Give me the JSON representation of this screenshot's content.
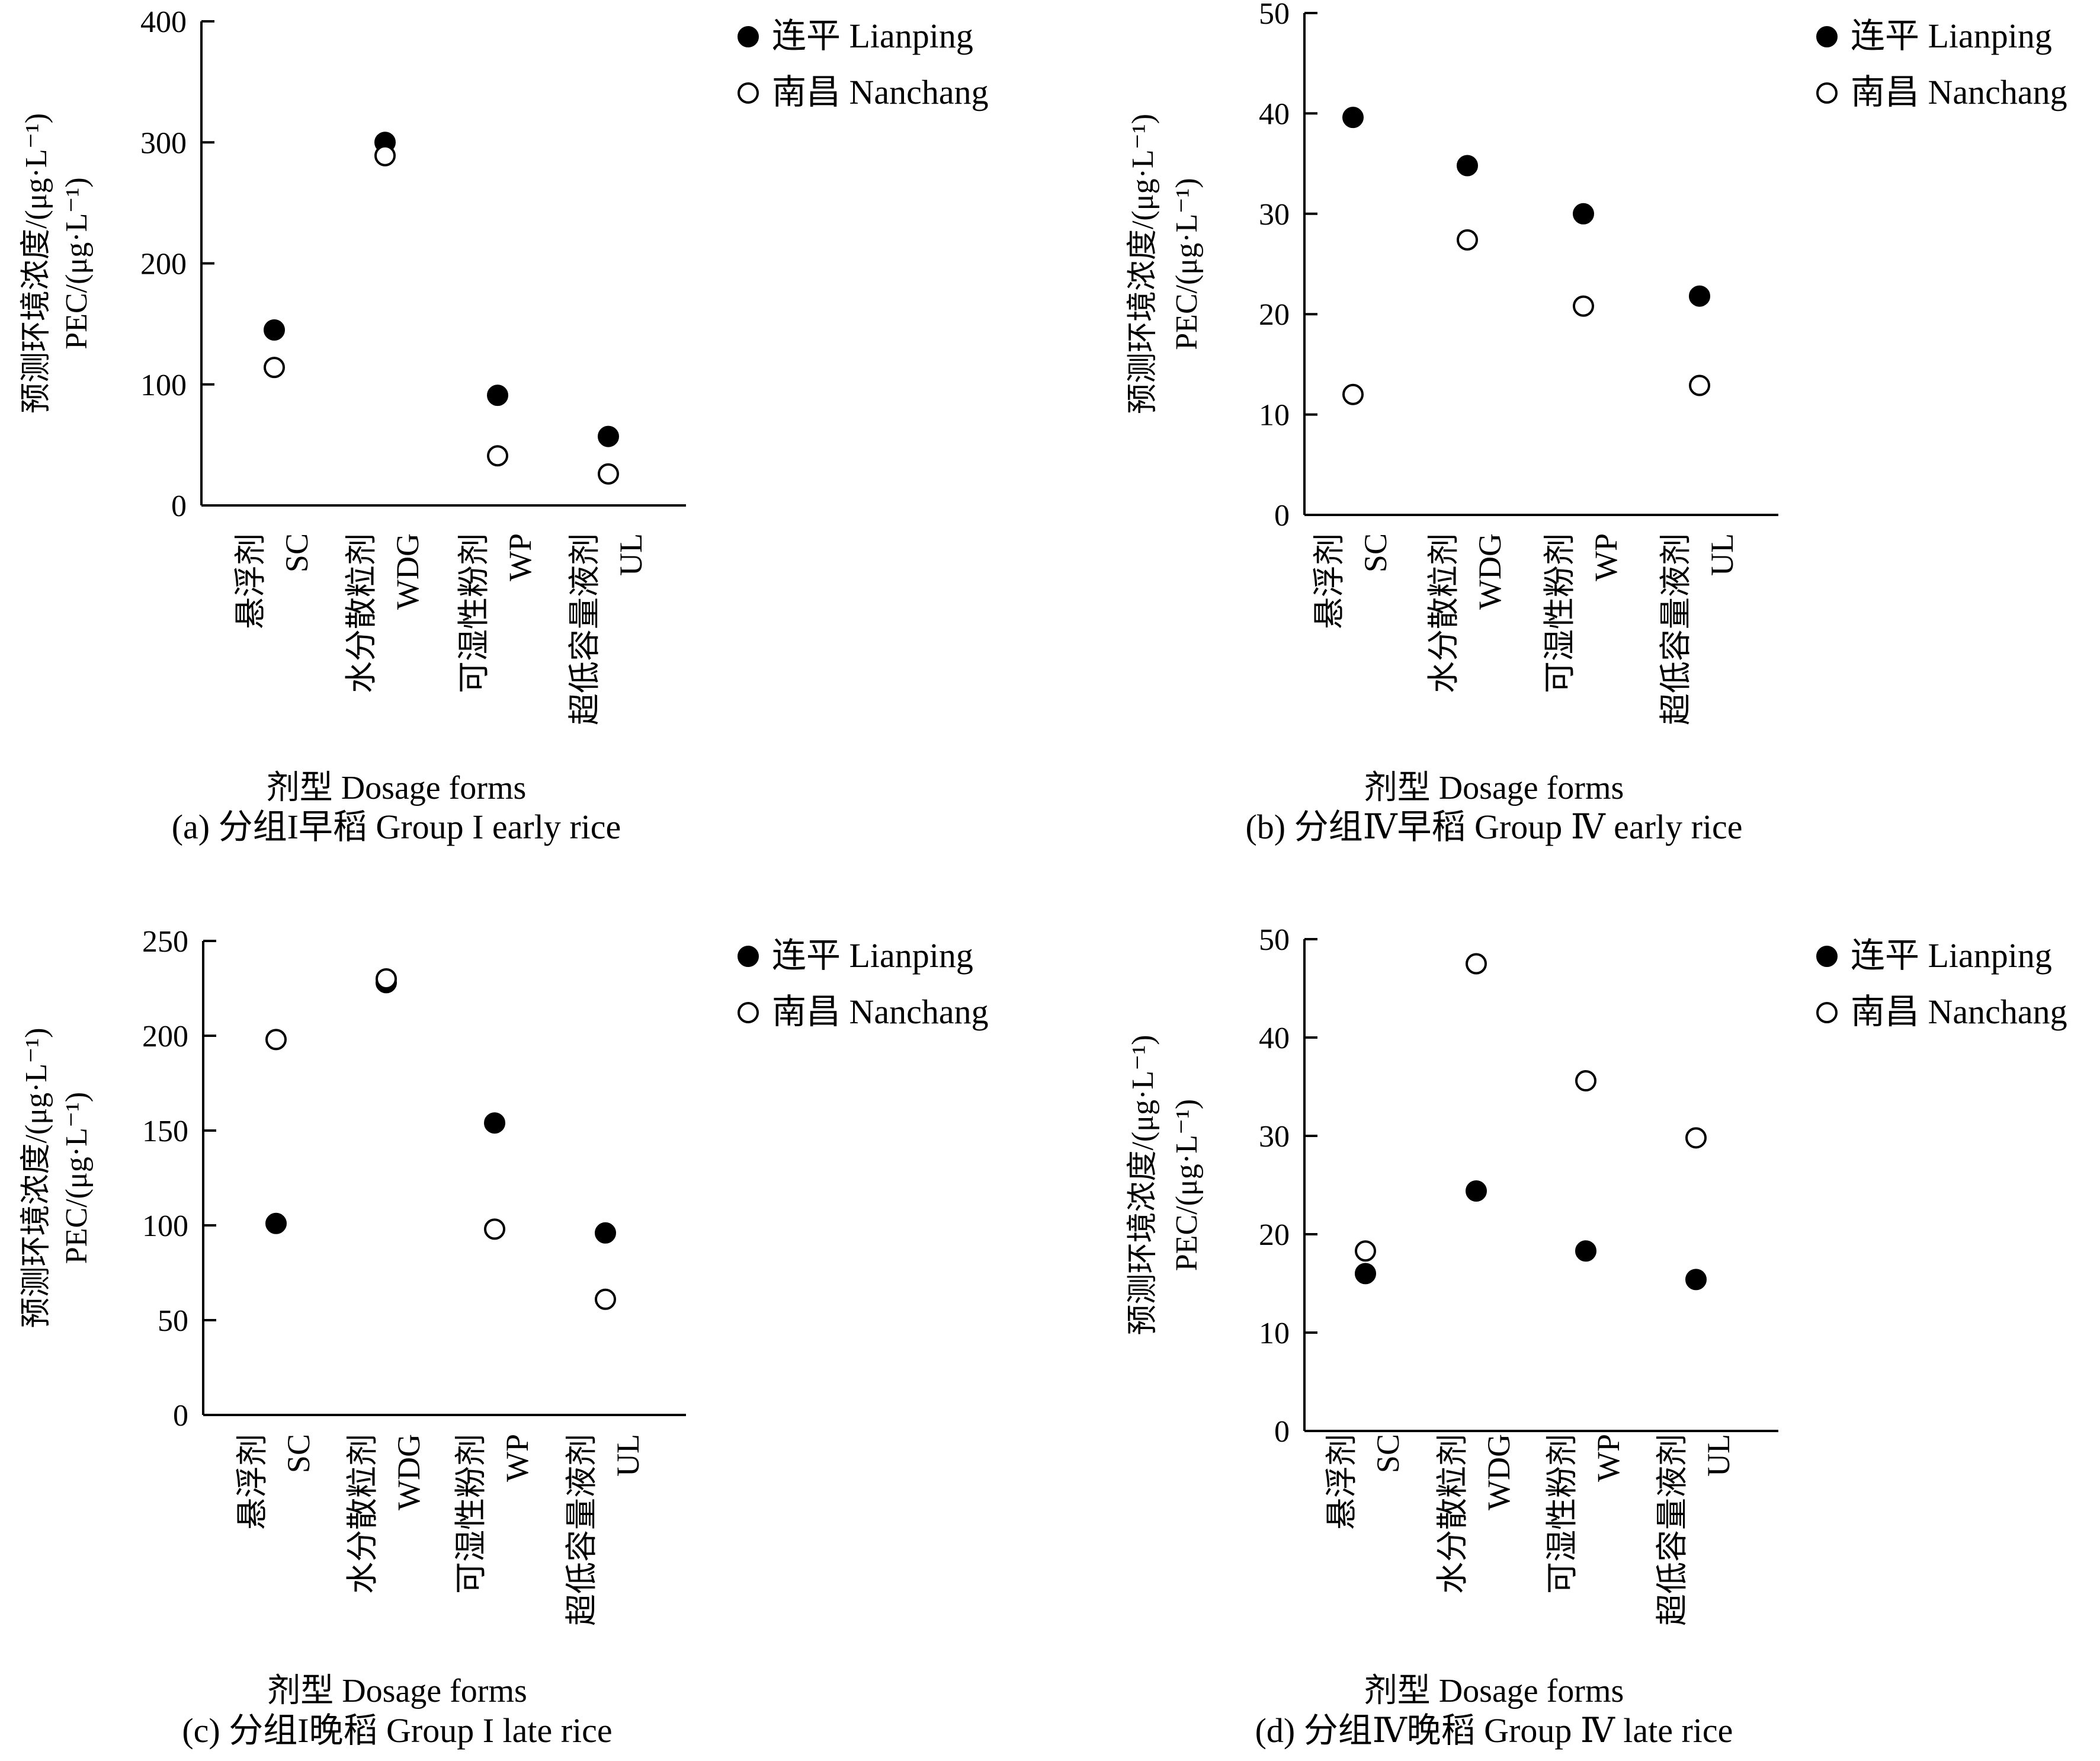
{
  "legend": {
    "lianping": "连平 Lianping",
    "nanchang": "南昌 Nanchang"
  },
  "colors": {
    "axis": "#000000",
    "lianping_fill": "#000000",
    "nanchang_fill": "#ffffff"
  },
  "chart_data": [
    {
      "type": "scatter",
      "caption": "(a) 分组I早稻 Group I early rice",
      "ylabel_cn": "预测环境浓度/(μg·L⁻¹)",
      "ylabel_en": "PEC/(μg·L⁻¹)",
      "xlabel": "剂型 Dosage forms",
      "categories": [
        {
          "cn": "悬浮剂",
          "en": "SC"
        },
        {
          "cn": "水分散粒剂",
          "en": "WDG"
        },
        {
          "cn": "可湿性粉剂",
          "en": "WP"
        },
        {
          "cn": "超低容量液剂",
          "en": "UL"
        }
      ],
      "ylim": [
        0,
        400
      ],
      "yticks": [
        0,
        100,
        200,
        300,
        400
      ],
      "series": [
        {
          "name": "连平 Lianping",
          "marker": "filled",
          "values": [
            145,
            300,
            91,
            57
          ]
        },
        {
          "name": "南昌 Nanchang",
          "marker": "open",
          "values": [
            114,
            289,
            41,
            26
          ]
        }
      ]
    },
    {
      "type": "scatter",
      "caption": "(b) 分组Ⅳ早稻 Group Ⅳ early rice",
      "ylabel_cn": "预测环境浓度/(μg·L⁻¹)",
      "ylabel_en": "PEC/(μg·L⁻¹)",
      "xlabel": "剂型 Dosage forms",
      "categories": [
        {
          "cn": "悬浮剂",
          "en": "SC"
        },
        {
          "cn": "水分散粒剂",
          "en": "WDG"
        },
        {
          "cn": "可湿性粉剂",
          "en": "WP"
        },
        {
          "cn": "超低容量液剂",
          "en": "UL"
        }
      ],
      "ylim": [
        0,
        50
      ],
      "yticks": [
        0,
        10,
        20,
        30,
        40,
        50
      ],
      "series": [
        {
          "name": "连平 Lianping",
          "marker": "filled",
          "values": [
            39.6,
            34.8,
            30.0,
            21.8
          ]
        },
        {
          "name": "南昌 Nanchang",
          "marker": "open",
          "values": [
            12.0,
            27.4,
            20.8,
            12.9
          ]
        }
      ]
    },
    {
      "type": "scatter",
      "caption": "(c) 分组I晚稻 Group I late rice",
      "ylabel_cn": "预测环境浓度/(μg·L⁻¹)",
      "ylabel_en": "PEC/(μg·L⁻¹)",
      "xlabel": "剂型 Dosage forms",
      "categories": [
        {
          "cn": "悬浮剂",
          "en": "SC"
        },
        {
          "cn": "水分散粒剂",
          "en": "WDG"
        },
        {
          "cn": "可湿性粉剂",
          "en": "WP"
        },
        {
          "cn": "超低容量液剂",
          "en": "UL"
        }
      ],
      "ylim": [
        0,
        250
      ],
      "yticks": [
        0,
        50,
        100,
        150,
        200,
        250
      ],
      "series": [
        {
          "name": "连平 Lianping",
          "marker": "filled",
          "values": [
            101,
            228,
            154,
            96
          ]
        },
        {
          "name": "南昌 Nanchang",
          "marker": "open",
          "values": [
            198,
            230,
            98,
            61
          ]
        }
      ]
    },
    {
      "type": "scatter",
      "caption": "(d) 分组Ⅳ晚稻 Group Ⅳ late rice",
      "ylabel_cn": "预测环境浓度/(μg·L⁻¹)",
      "ylabel_en": "PEC/(μg·L⁻¹)",
      "xlabel": "剂型 Dosage forms",
      "categories": [
        {
          "cn": "悬浮剂",
          "en": "SC"
        },
        {
          "cn": "水分散粒剂",
          "en": "WDG"
        },
        {
          "cn": "可湿性粉剂",
          "en": "WP"
        },
        {
          "cn": "超低容量液剂",
          "en": "UL"
        }
      ],
      "ylim": [
        0,
        50
      ],
      "yticks": [
        0,
        10,
        20,
        30,
        40,
        50
      ],
      "series": [
        {
          "name": "连平 Lianping",
          "marker": "filled",
          "values": [
            16.0,
            24.4,
            18.3,
            15.4
          ]
        },
        {
          "name": "南昌 Nanchang",
          "marker": "open",
          "values": [
            18.3,
            47.5,
            35.6,
            29.8
          ]
        }
      ]
    }
  ]
}
